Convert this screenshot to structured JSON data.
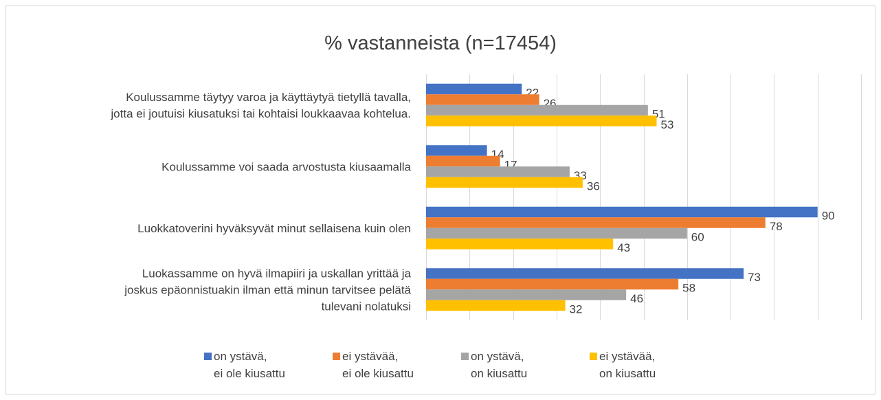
{
  "chart_data": {
    "type": "hbar",
    "title": "% vastanneista (n=17454)",
    "categories": [
      "Koulussamme täytyy varoa ja käyttäytyä tietyllä tavalla,\njotta ei joutuisi kiusatuksi tai kohtaisi loukkaavaa kohtelua.",
      "Koulussamme voi saada arvostusta kiusaamalla",
      "Luokkatoverini hyväksyvät minut sellaisena kuin olen",
      "Luokassamme on hyvä ilmapiiri ja uskallan yrittää ja\njoskus epäonnistuakin ilman että minun tarvitsee pelätä\ntulevani nolatuksi"
    ],
    "series": [
      {
        "name": "on ystävä,\nei ole kiusattu",
        "color": "#4472c4",
        "values": [
          22,
          14,
          90,
          73
        ]
      },
      {
        "name": "ei ystävää,\nei ole kiusattu",
        "color": "#ed7d31",
        "values": [
          26,
          17,
          78,
          58
        ]
      },
      {
        "name": "on ystävä,\non kiusattu",
        "color": "#a5a5a5",
        "values": [
          51,
          33,
          60,
          46
        ]
      },
      {
        "name": "ei ystävää,\non kiusattu",
        "color": "#ffc000",
        "values": [
          53,
          36,
          43,
          32
        ]
      }
    ],
    "xlim": [
      0,
      100
    ],
    "xticks": [
      0,
      10,
      20,
      30,
      40,
      50,
      60,
      70,
      80,
      90,
      100
    ],
    "grid": true,
    "legend": "bottom"
  }
}
